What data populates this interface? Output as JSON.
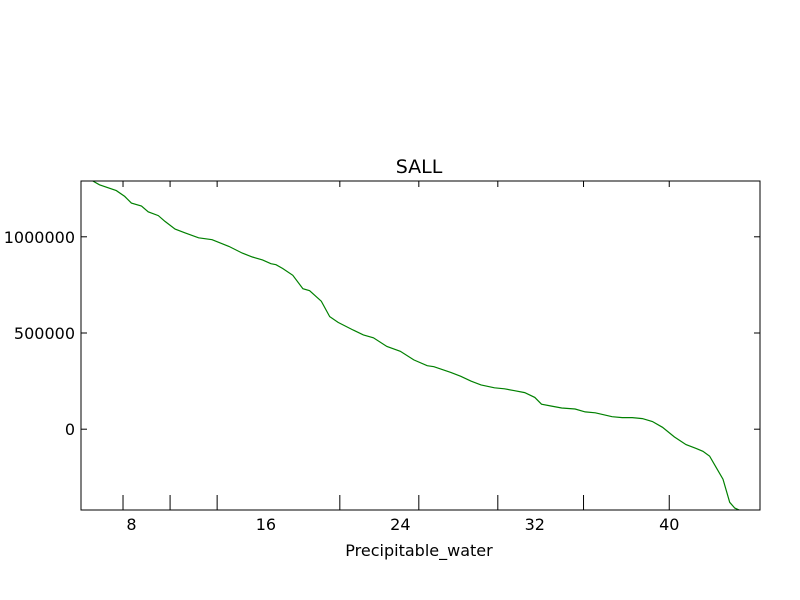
{
  "chart_data": {
    "type": "line",
    "title": "SALL",
    "xlabel": "Precipitable_water",
    "ylabel": "",
    "xlim": [
      5,
      45.4
    ],
    "ylim": [
      -420000,
      1290000
    ],
    "xticks": [
      8,
      16,
      24,
      32,
      40
    ],
    "yticks": [
      0,
      500000,
      1000000
    ],
    "ytick_labels": [
      "0",
      "500000",
      "1000000"
    ],
    "xtick_labels": [
      "8",
      "16",
      "24",
      "32",
      "40"
    ],
    "minor_xticks": [
      7.5,
      10.3,
      13.1,
      20.4,
      25.1,
      29.8,
      34.9,
      40.0
    ],
    "grid": false,
    "series": [
      {
        "color": "#008000",
        "x": [
          5.7,
          6.1,
          7.1,
          7.6,
          8.0,
          8.6,
          9.0,
          9.6,
          10.0,
          10.6,
          11.2,
          12.0,
          12.8,
          13.8,
          14.6,
          15.2,
          15.8,
          16.3,
          16.6,
          17.0,
          17.6,
          18.2,
          18.6,
          19.3,
          19.8,
          20.3,
          21.2,
          21.8,
          22.4,
          23.2,
          24.0,
          24.8,
          25.6,
          26.0,
          27.0,
          27.6,
          28.2,
          28.8,
          29.6,
          30.2,
          30.8,
          31.4,
          32.0,
          32.4,
          33.0,
          33.6,
          34.4,
          35.0,
          35.6,
          36.6,
          37.2,
          37.8,
          38.4,
          39.0,
          39.6,
          40.3,
          41.0,
          41.6,
          42.0,
          42.4,
          42.8,
          43.2,
          43.6,
          43.9,
          44.3,
          44.8
        ],
        "y": [
          1290000,
          1270000,
          1240000,
          1210000,
          1175000,
          1160000,
          1130000,
          1110000,
          1080000,
          1040000,
          1020000,
          995000,
          985000,
          950000,
          915000,
          895000,
          880000,
          860000,
          855000,
          835000,
          800000,
          730000,
          720000,
          665000,
          585000,
          555000,
          515000,
          490000,
          475000,
          430000,
          405000,
          360000,
          330000,
          325000,
          295000,
          275000,
          250000,
          230000,
          215000,
          210000,
          200000,
          190000,
          165000,
          130000,
          120000,
          110000,
          105000,
          90000,
          85000,
          65000,
          60000,
          60000,
          55000,
          40000,
          10000,
          -40000,
          -80000,
          -100000,
          -115000,
          -140000,
          -200000,
          -260000,
          -380000,
          -410000,
          -425000,
          -425000
        ]
      }
    ]
  }
}
